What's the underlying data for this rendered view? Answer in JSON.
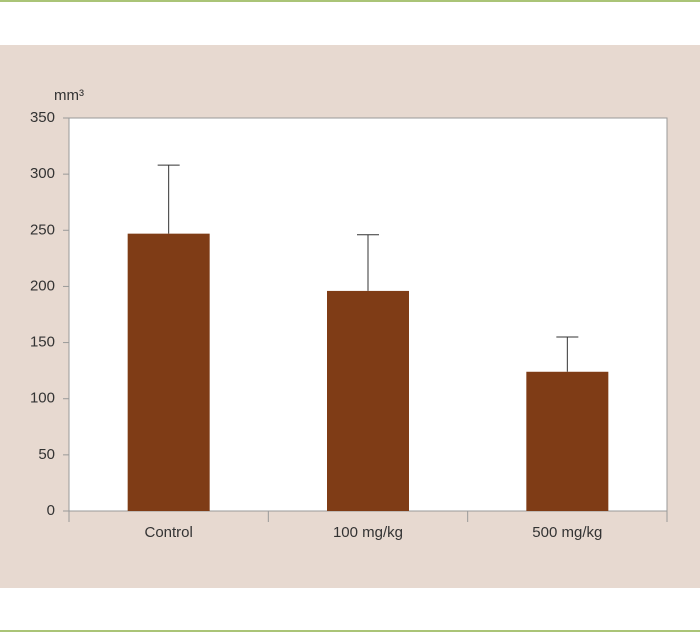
{
  "chart_data": {
    "type": "bar",
    "y_label": "mm³",
    "categories": [
      "Control",
      "100 mg/kg",
      "500 mg/kg"
    ],
    "values": [
      247,
      196,
      124
    ],
    "errors": [
      61,
      50,
      31
    ],
    "color": "#7f3c16",
    "ylim": [
      0,
      350
    ],
    "yticks": [
      0,
      50,
      100,
      150,
      200,
      250,
      300,
      350
    ],
    "grid": false
  }
}
